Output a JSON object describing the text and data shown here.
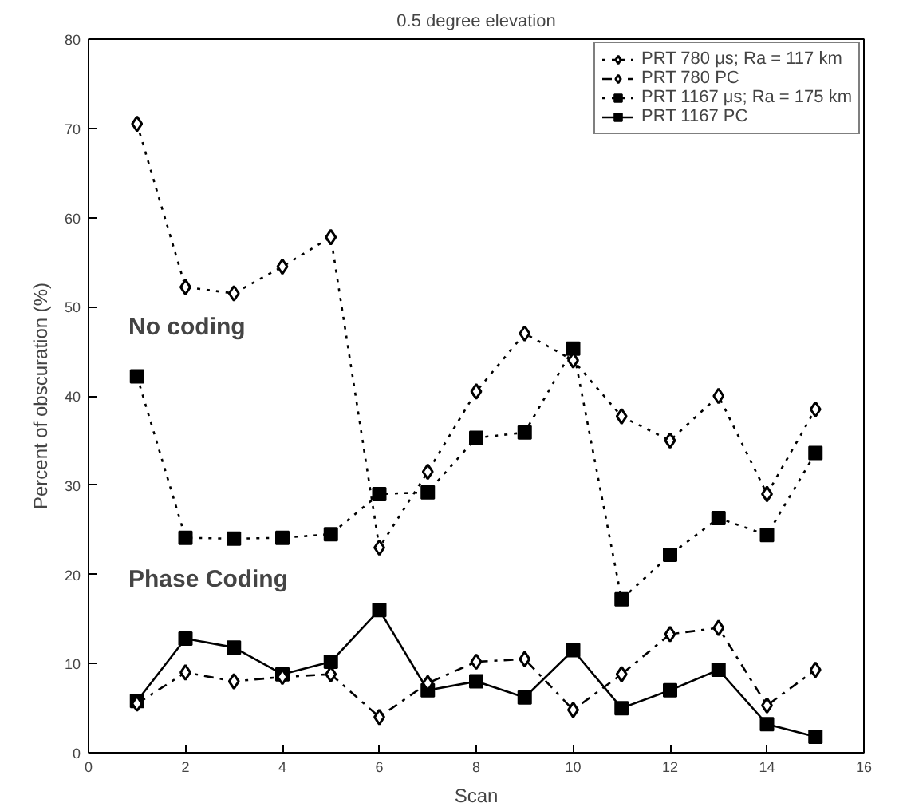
{
  "chart_data": {
    "type": "line",
    "title": "0.5 degree elevation",
    "xlabel": "Scan",
    "ylabel": "Percent of obscuration (%)",
    "x": [
      1,
      2,
      3,
      4,
      5,
      6,
      7,
      8,
      9,
      10,
      11,
      12,
      13,
      14,
      15
    ],
    "xlim": [
      0,
      16
    ],
    "xticks": [
      0,
      2,
      4,
      6,
      8,
      10,
      12,
      14,
      16
    ],
    "ylim": [
      0,
      80
    ],
    "yticks": [
      0,
      10,
      20,
      30,
      40,
      50,
      60,
      70,
      80
    ],
    "grid": false,
    "legend": "top right",
    "series": [
      {
        "name": "PRT 780 μs; Ra = 117 km",
        "color": "#000000",
        "marker": "diamond",
        "line_style": "dotted",
        "values": [
          70.5,
          52.2,
          51.5,
          54.5,
          57.8,
          23,
          31.5,
          40.5,
          47,
          44,
          37.7,
          35,
          40,
          29,
          38.5
        ]
      },
      {
        "name": "PRT 780 PC",
        "color": "#000000",
        "marker": "diamond",
        "line_style": "dashdot",
        "values": [
          5.5,
          9,
          8,
          8.5,
          8.8,
          4,
          7.8,
          10.2,
          10.5,
          4.8,
          8.8,
          13.3,
          14,
          5.3,
          9.3
        ]
      },
      {
        "name": "PRT 1167 μs; Ra = 175 km",
        "color": "#000000",
        "marker": "square",
        "line_style": "dotted",
        "values": [
          42.2,
          24.1,
          24,
          24.1,
          24.5,
          29,
          29.2,
          35.3,
          35.9,
          45.3,
          17.2,
          22.2,
          26.3,
          24.4,
          33.6
        ]
      },
      {
        "name": "PRT 1167 PC",
        "color": "#000000",
        "marker": "square",
        "line_style": "solid",
        "values": [
          5.8,
          12.8,
          11.8,
          8.8,
          10.2,
          16,
          7,
          8,
          6.2,
          11.5,
          5,
          7,
          9.3,
          3.2,
          1.8
        ]
      }
    ],
    "annotations": [
      "No coding",
      "Phase Coding"
    ]
  }
}
